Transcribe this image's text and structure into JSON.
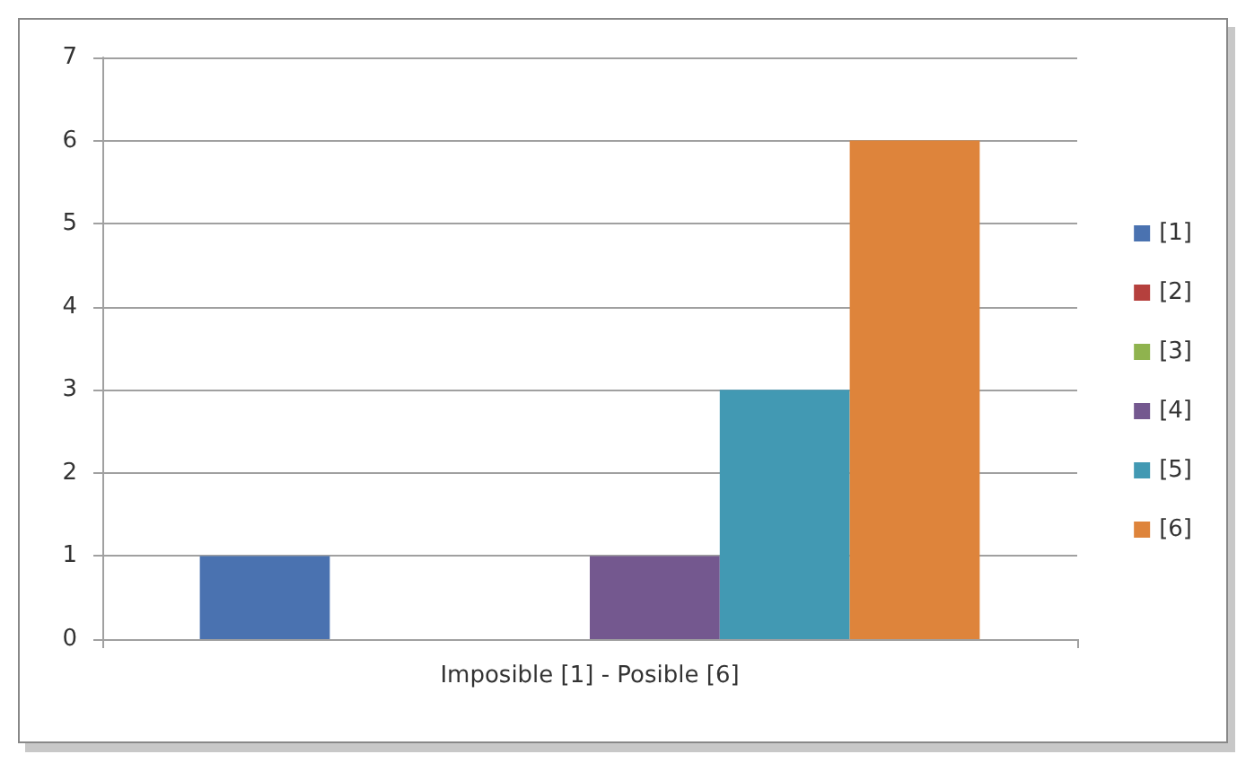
{
  "chart_data": {
    "type": "bar",
    "categories": [
      "Imposible [1] - Posible [6]"
    ],
    "series": [
      {
        "name": "[1]",
        "color": "#4a72b0",
        "values": [
          1
        ]
      },
      {
        "name": "[2]",
        "color": "#b5403d",
        "values": [
          0
        ]
      },
      {
        "name": "[3]",
        "color": "#8fb34e",
        "values": [
          0
        ]
      },
      {
        "name": "[4]",
        "color": "#74588f",
        "values": [
          1
        ]
      },
      {
        "name": "[5]",
        "color": "#4299b3",
        "values": [
          3
        ]
      },
      {
        "name": "[6]",
        "color": "#de843b",
        "values": [
          6
        ]
      }
    ],
    "ylim": [
      0,
      7
    ],
    "yticks": [
      0,
      1,
      2,
      3,
      4,
      5,
      6,
      7
    ],
    "grid": "y",
    "legend": "right"
  }
}
